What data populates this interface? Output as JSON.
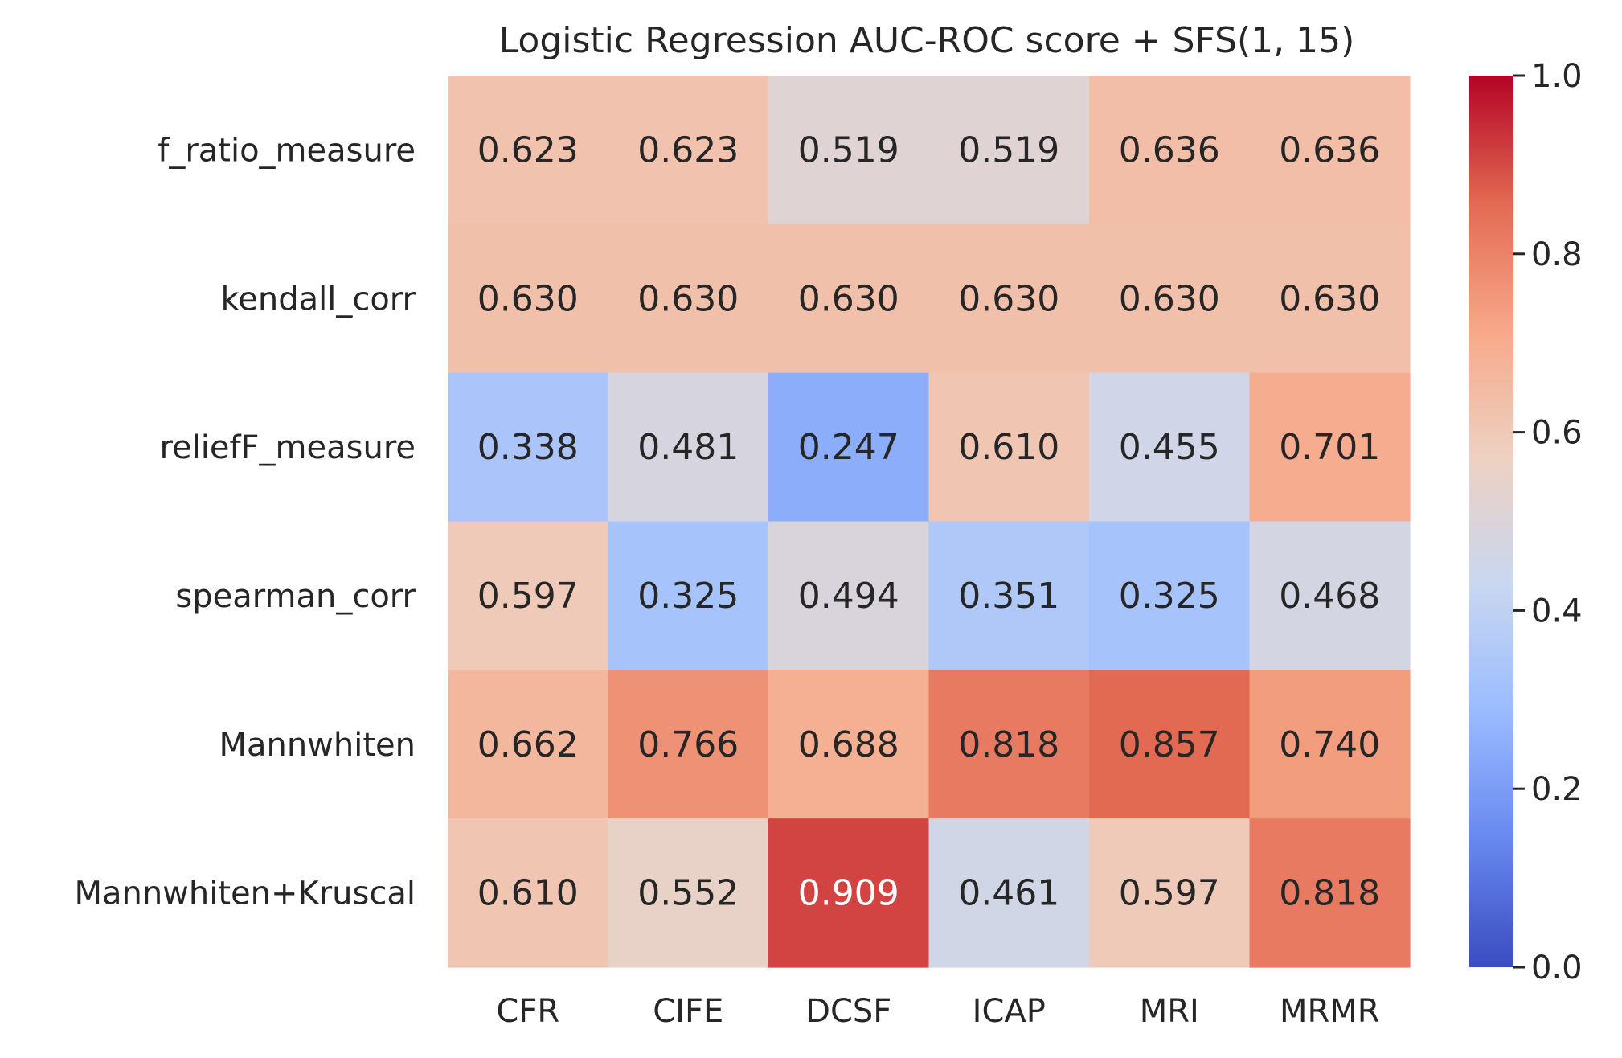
{
  "chart_data": {
    "type": "heatmap",
    "title": "Logistic Regression AUC-ROC score + SFS(1, 15)",
    "xlabel": "",
    "ylabel": "",
    "columns": [
      "CFR",
      "CIFE",
      "DCSF",
      "ICAP",
      "MRI",
      "MRMR"
    ],
    "rows": [
      "f_ratio_measure",
      "kendall_corr",
      "reliefF_measure",
      "spearman_corr",
      "Mannwhiten",
      "Mannwhiten+Kruscal"
    ],
    "values": [
      [
        0.623,
        0.623,
        0.519,
        0.519,
        0.636,
        0.636
      ],
      [
        0.63,
        0.63,
        0.63,
        0.63,
        0.63,
        0.63
      ],
      [
        0.338,
        0.481,
        0.247,
        0.61,
        0.455,
        0.701
      ],
      [
        0.597,
        0.325,
        0.494,
        0.351,
        0.325,
        0.468
      ],
      [
        0.662,
        0.766,
        0.688,
        0.818,
        0.857,
        0.74
      ],
      [
        0.61,
        0.552,
        0.909,
        0.461,
        0.597,
        0.818
      ]
    ],
    "value_format": "0.000",
    "colormap": "coolwarm",
    "colormap_stops": [
      "#3b4cc0",
      "#6788ee",
      "#9abbff",
      "#c9d7f0",
      "#edd1c2",
      "#f7a889",
      "#e26952",
      "#b40426"
    ],
    "vmin": 0.0,
    "vmax": 1.0,
    "colorbar_ticks": [
      0.0,
      0.2,
      0.4,
      0.6,
      0.8,
      1.0
    ],
    "colorbar_tick_labels": [
      "0.0",
      "0.2",
      "0.4",
      "0.6",
      "0.8",
      "1.0"
    ],
    "grid": false,
    "colorbar_position": "right"
  }
}
